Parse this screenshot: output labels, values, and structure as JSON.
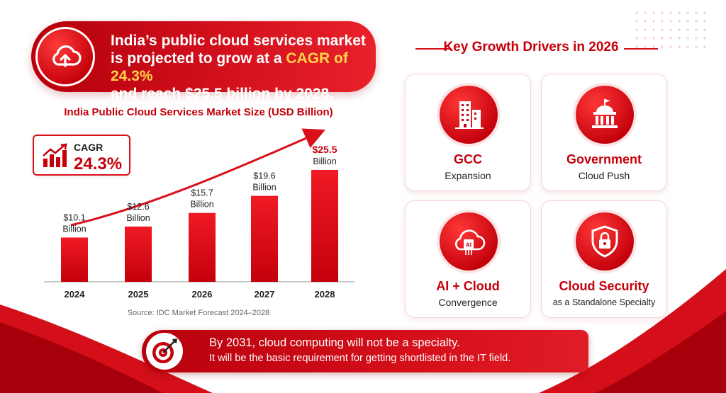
{
  "headline": {
    "line1": "India’s public cloud services market",
    "line2_prefix": "is projected to grow at a ",
    "line2_highlight": "CAGR of 24.3%",
    "line3": "and reach $25.5 billion by 2028."
  },
  "cagr": {
    "label": "CAGR",
    "value": "24.3%"
  },
  "chart_data": {
    "type": "bar",
    "title": "India Public Cloud Services Market Size (USD Billion)",
    "categories": [
      "2024",
      "2025",
      "2026",
      "2027",
      "2028"
    ],
    "values": [
      10.1,
      12.6,
      15.7,
      19.6,
      25.5
    ],
    "labels_top": [
      "$10.1",
      "$12.6",
      "$15.7",
      "$19.6",
      "$25.5"
    ],
    "labels_bottom": [
      "Billion",
      "Billion",
      "Billion",
      "Billion",
      "Billion"
    ],
    "xlabel": "",
    "ylabel": "",
    "grid": false,
    "trend_arrow": true,
    "highlight_last_label_color": "#c4000a",
    "bar_color": "#d90f19"
  },
  "source": "Source: IDC Market Forecast 2024–2028",
  "drivers": {
    "title": "Key Growth Drivers in 2026",
    "items": [
      {
        "title": "GCC",
        "subtitle": "Expansion",
        "icon": "buildings-icon"
      },
      {
        "title": "Government",
        "subtitle": "Cloud Push",
        "icon": "government-building-icon"
      },
      {
        "title": "AI + Cloud",
        "subtitle": "Convergence",
        "icon": "ai-cloud-icon"
      },
      {
        "title": "Cloud Security",
        "subtitle": "as a Standalone Specialty",
        "icon": "shield-lock-icon"
      }
    ]
  },
  "banner": {
    "line1": "By 2031, cloud computing will not be a specialty.",
    "line2": "It will be the basic requirement for getting shortlisted in the IT field."
  },
  "colors": {
    "primary": "#c4000a",
    "accent": "#d90f19",
    "highlight": "#ffd34a"
  }
}
